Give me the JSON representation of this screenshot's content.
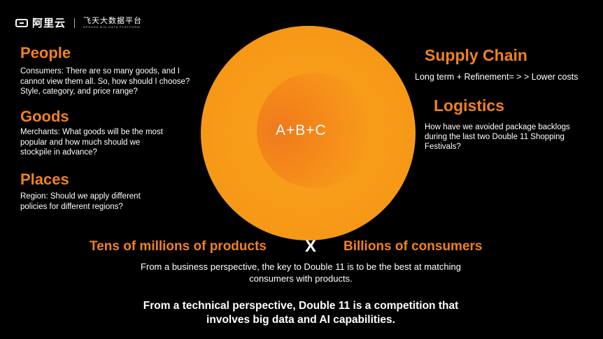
{
  "header": {
    "brand": "阿里云",
    "platform_title": "飞天大数据平台",
    "platform_sub": "APSARA BIG DATA PLATFORM"
  },
  "left": {
    "people_title": "People",
    "people_desc_1": "Consumers: There are so many goods, and I",
    "people_desc_2": "cannot view them all. So, how should I choose?",
    "people_desc_3": "Style, category, and price range?",
    "goods_title": "Goods",
    "goods_desc_1": "Merchants: What goods will be the most",
    "goods_desc_2": "popular and how much should we",
    "goods_desc_3": "stockpile in advance?",
    "places_title": "Places",
    "places_desc_1": "Region: Should we apply different",
    "places_desc_2": "policies for different regions?"
  },
  "center": {
    "formula": "A+B+C"
  },
  "right": {
    "supply_title": "Supply Chain",
    "supply_desc": "Long term +  Refinement= > > Lower costs",
    "logistics_title": "Logistics",
    "logistics_desc_1": "How have we avoided package backlogs",
    "logistics_desc_2": "during the last two Double 11 Shopping",
    "logistics_desc_3": "Festivals?"
  },
  "bottom": {
    "products": "Tens of millions of products",
    "times": "X",
    "consumers": "Billions of consumers",
    "business_1": "From a business perspective, the key to Double 11 is to be the best at matching",
    "business_2": "consumers with products.",
    "tech_1": "From a technical perspective, Double 11 is a competition that",
    "tech_2": "involves big data and AI capabilities."
  }
}
